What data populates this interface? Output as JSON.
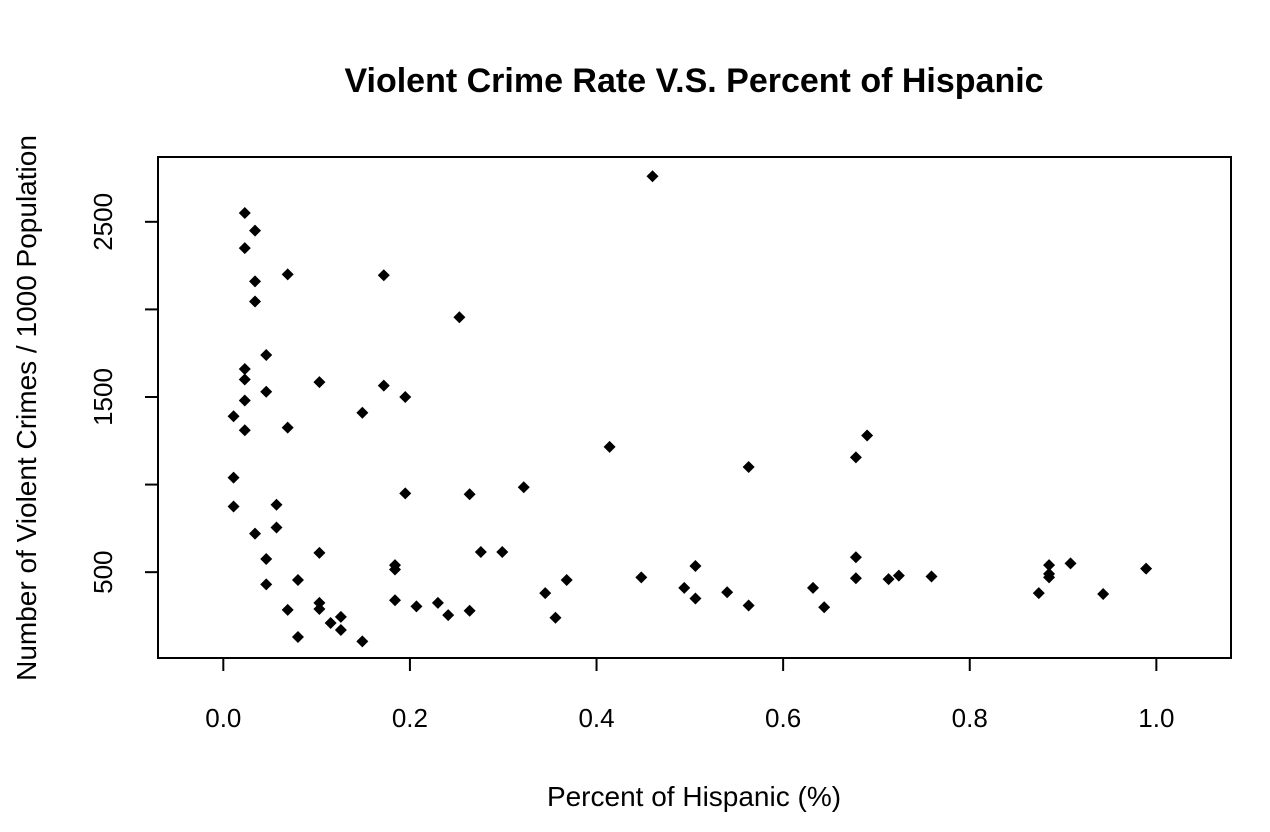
{
  "chart_data": {
    "type": "scatter",
    "title": "Violent Crime Rate V.S. Percent of Hispanic",
    "xlabel": "Percent of Hispanic (%)",
    "ylabel": "Number of Violent Crimes / 1000 Population",
    "xlim": [
      -0.07,
      1.08
    ],
    "ylim": [
      10,
      2870
    ],
    "x_ticks": [
      0.0,
      0.2,
      0.4,
      0.6,
      0.8,
      1.0
    ],
    "x_tick_labels": [
      "0.0",
      "0.2",
      "0.4",
      "0.6",
      "0.8",
      "1.0"
    ],
    "y_ticks": [
      500,
      1000,
      1500,
      2000,
      2500
    ],
    "y_tick_labels": [
      "500",
      "",
      "1500",
      "",
      "2500"
    ],
    "marker": "filled-diamond",
    "color": "#000000",
    "grid": false,
    "points": [
      {
        "x": 0.011,
        "y": 1390
      },
      {
        "x": 0.011,
        "y": 1040
      },
      {
        "x": 0.011,
        "y": 875
      },
      {
        "x": 0.023,
        "y": 2550
      },
      {
        "x": 0.023,
        "y": 2350
      },
      {
        "x": 0.023,
        "y": 1660
      },
      {
        "x": 0.023,
        "y": 1600
      },
      {
        "x": 0.023,
        "y": 1480
      },
      {
        "x": 0.023,
        "y": 1310
      },
      {
        "x": 0.034,
        "y": 2450
      },
      {
        "x": 0.034,
        "y": 2160
      },
      {
        "x": 0.034,
        "y": 2045
      },
      {
        "x": 0.034,
        "y": 720
      },
      {
        "x": 0.046,
        "y": 1740
      },
      {
        "x": 0.046,
        "y": 1530
      },
      {
        "x": 0.046,
        "y": 575
      },
      {
        "x": 0.046,
        "y": 430
      },
      {
        "x": 0.057,
        "y": 885
      },
      {
        "x": 0.057,
        "y": 755
      },
      {
        "x": 0.069,
        "y": 2200
      },
      {
        "x": 0.069,
        "y": 1325
      },
      {
        "x": 0.069,
        "y": 285
      },
      {
        "x": 0.08,
        "y": 455
      },
      {
        "x": 0.08,
        "y": 130
      },
      {
        "x": 0.103,
        "y": 1585
      },
      {
        "x": 0.103,
        "y": 610
      },
      {
        "x": 0.103,
        "y": 325
      },
      {
        "x": 0.103,
        "y": 290
      },
      {
        "x": 0.115,
        "y": 210
      },
      {
        "x": 0.126,
        "y": 245
      },
      {
        "x": 0.126,
        "y": 170
      },
      {
        "x": 0.149,
        "y": 1410
      },
      {
        "x": 0.149,
        "y": 105
      },
      {
        "x": 0.172,
        "y": 2195
      },
      {
        "x": 0.172,
        "y": 1565
      },
      {
        "x": 0.184,
        "y": 540
      },
      {
        "x": 0.184,
        "y": 515
      },
      {
        "x": 0.184,
        "y": 340
      },
      {
        "x": 0.195,
        "y": 1500
      },
      {
        "x": 0.195,
        "y": 950
      },
      {
        "x": 0.207,
        "y": 305
      },
      {
        "x": 0.23,
        "y": 325
      },
      {
        "x": 0.241,
        "y": 255
      },
      {
        "x": 0.253,
        "y": 1955
      },
      {
        "x": 0.264,
        "y": 945
      },
      {
        "x": 0.264,
        "y": 280
      },
      {
        "x": 0.276,
        "y": 615
      },
      {
        "x": 0.299,
        "y": 615
      },
      {
        "x": 0.322,
        "y": 985
      },
      {
        "x": 0.345,
        "y": 380
      },
      {
        "x": 0.356,
        "y": 240
      },
      {
        "x": 0.368,
        "y": 455
      },
      {
        "x": 0.414,
        "y": 1215
      },
      {
        "x": 0.448,
        "y": 470
      },
      {
        "x": 0.46,
        "y": 2760
      },
      {
        "x": 0.494,
        "y": 410
      },
      {
        "x": 0.506,
        "y": 350
      },
      {
        "x": 0.506,
        "y": 535
      },
      {
        "x": 0.54,
        "y": 385
      },
      {
        "x": 0.563,
        "y": 1100
      },
      {
        "x": 0.563,
        "y": 310
      },
      {
        "x": 0.632,
        "y": 410
      },
      {
        "x": 0.644,
        "y": 300
      },
      {
        "x": 0.678,
        "y": 1155
      },
      {
        "x": 0.678,
        "y": 585
      },
      {
        "x": 0.678,
        "y": 465
      },
      {
        "x": 0.69,
        "y": 1280
      },
      {
        "x": 0.713,
        "y": 460
      },
      {
        "x": 0.724,
        "y": 480
      },
      {
        "x": 0.759,
        "y": 475
      },
      {
        "x": 0.874,
        "y": 380
      },
      {
        "x": 0.885,
        "y": 540
      },
      {
        "x": 0.885,
        "y": 490
      },
      {
        "x": 0.885,
        "y": 470
      },
      {
        "x": 0.908,
        "y": 550
      },
      {
        "x": 0.943,
        "y": 375
      },
      {
        "x": 0.989,
        "y": 520
      }
    ]
  }
}
